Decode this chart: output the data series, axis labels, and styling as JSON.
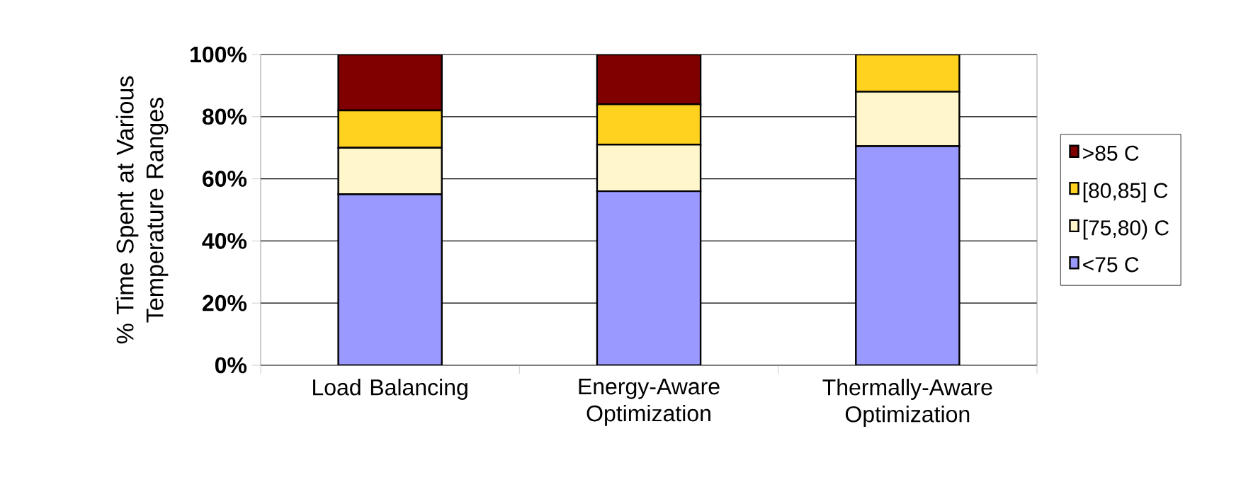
{
  "chart_data": {
    "type": "bar",
    "stacked": true,
    "ylabel": "% Time Spent at Various Temperature Ranges",
    "categories": [
      "Load Balancing",
      "Energy-Aware Optimization",
      "Thermally-Aware Optimization"
    ],
    "series": [
      {
        "name": "<75 C",
        "color": "#9999ff",
        "values": [
          55,
          56,
          70.5
        ]
      },
      {
        "name": "[75,80) C",
        "color": "#fff6cc",
        "values": [
          15,
          15,
          17.5
        ]
      },
      {
        "name": "[80,85] C",
        "color": "#ffd21f",
        "values": [
          12,
          13,
          12
        ]
      },
      {
        "name": ">85 C",
        "color": "#800000",
        "values": [
          18,
          16,
          0
        ]
      }
    ],
    "ylim": [
      0,
      100
    ],
    "yticks": [
      {
        "value": 0,
        "label": "0%"
      },
      {
        "value": 20,
        "label": "20%"
      },
      {
        "value": 40,
        "label": "40%"
      },
      {
        "value": 60,
        "label": "60%"
      },
      {
        "value": 80,
        "label": "80%"
      },
      {
        "value": 100,
        "label": "100%"
      }
    ],
    "grid": "y",
    "legend": "right"
  }
}
